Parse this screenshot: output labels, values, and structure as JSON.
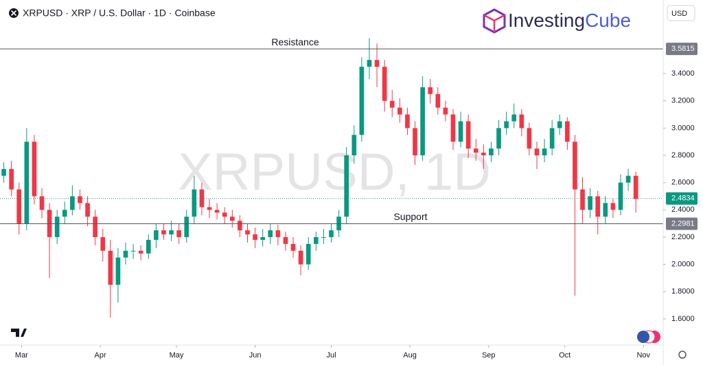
{
  "chart_data": {
    "type": "candlestick",
    "title": "XRPUSD · XRP / U.S. Dollar · 1D · Coinbase",
    "watermark": "XRPUSD, 1D",
    "currency": "USD",
    "logo": {
      "brand": "Investing",
      "accent": "Cube"
    },
    "up_color": "#089981",
    "down_color": "#f23645",
    "open": [
      2.65,
      2.7,
      2.55,
      2.3,
      2.9,
      2.5,
      2.4,
      2.2,
      2.35,
      2.4,
      2.5,
      2.45,
      2.35,
      2.2,
      2.1,
      1.85,
      2.05,
      2.1,
      2.1,
      2.08,
      2.18,
      2.25,
      2.22,
      2.25,
      2.2,
      2.35,
      2.55,
      2.42,
      2.4,
      2.38,
      2.35,
      2.32,
      2.25,
      2.22,
      2.18,
      2.2,
      2.25,
      2.2,
      2.15,
      2.1,
      2.0,
      2.15,
      2.2,
      2.2,
      2.25,
      2.35,
      2.8,
      2.95,
      3.45,
      3.5,
      3.45,
      3.2,
      3.15,
      3.1,
      3.0,
      2.8,
      3.3,
      3.25,
      3.15,
      3.1,
      2.9,
      3.05,
      2.85,
      2.82,
      2.8,
      2.85,
      3.0,
      3.05,
      3.1,
      3.0,
      2.85,
      2.8,
      2.85,
      3.0,
      3.05,
      2.9,
      2.55,
      2.4,
      2.5,
      2.35,
      2.45,
      2.4,
      2.6,
      2.65
    ],
    "high": [
      2.75,
      2.76,
      2.6,
      3.0,
      2.95,
      2.56,
      2.45,
      2.4,
      2.46,
      2.58,
      2.55,
      2.5,
      2.4,
      2.26,
      2.18,
      2.12,
      2.16,
      2.15,
      2.14,
      2.22,
      2.3,
      2.3,
      2.32,
      2.3,
      2.4,
      2.65,
      2.6,
      2.48,
      2.45,
      2.42,
      2.4,
      2.36,
      2.3,
      2.27,
      2.26,
      2.3,
      2.29,
      2.24,
      2.2,
      2.14,
      2.2,
      2.24,
      2.26,
      2.3,
      2.4,
      2.86,
      3.02,
      3.52,
      3.66,
      3.62,
      3.5,
      3.28,
      3.22,
      3.15,
      3.05,
      3.38,
      3.36,
      3.3,
      3.2,
      3.14,
      3.12,
      3.1,
      2.92,
      2.88,
      2.9,
      3.06,
      3.12,
      3.18,
      3.14,
      3.04,
      2.9,
      2.92,
      3.06,
      3.1,
      3.08,
      2.95,
      2.64,
      2.56,
      2.54,
      2.5,
      2.48,
      2.66,
      2.7,
      2.68
    ],
    "low": [
      2.6,
      2.5,
      2.22,
      2.25,
      2.44,
      2.34,
      1.9,
      2.15,
      2.3,
      2.36,
      2.4,
      2.28,
      2.14,
      2.02,
      1.61,
      1.72,
      2.0,
      2.04,
      2.03,
      2.04,
      2.12,
      2.18,
      2.17,
      2.15,
      2.16,
      2.3,
      2.36,
      2.34,
      2.33,
      2.3,
      2.27,
      2.2,
      2.16,
      2.12,
      2.13,
      2.15,
      2.14,
      2.1,
      2.05,
      1.92,
      1.96,
      2.1,
      2.15,
      2.16,
      2.2,
      2.3,
      2.74,
      2.9,
      3.36,
      3.3,
      3.12,
      3.08,
      3.04,
      2.95,
      2.73,
      2.76,
      3.18,
      3.1,
      3.05,
      2.84,
      2.86,
      2.78,
      2.76,
      2.7,
      2.75,
      2.8,
      2.95,
      3.0,
      2.94,
      2.8,
      2.7,
      2.75,
      2.8,
      2.95,
      2.84,
      1.77,
      2.3,
      2.34,
      2.22,
      2.3,
      2.34,
      2.36,
      2.54,
      2.38
    ],
    "close": [
      2.7,
      2.55,
      2.3,
      2.9,
      2.5,
      2.4,
      2.2,
      2.35,
      2.4,
      2.5,
      2.45,
      2.35,
      2.2,
      2.1,
      1.85,
      2.05,
      2.1,
      2.1,
      2.08,
      2.18,
      2.25,
      2.22,
      2.25,
      2.2,
      2.35,
      2.55,
      2.42,
      2.4,
      2.38,
      2.35,
      2.32,
      2.25,
      2.22,
      2.18,
      2.2,
      2.25,
      2.2,
      2.15,
      2.1,
      2.0,
      2.15,
      2.2,
      2.2,
      2.25,
      2.35,
      2.8,
      2.95,
      3.45,
      3.5,
      3.45,
      3.2,
      3.15,
      3.1,
      3.0,
      2.8,
      3.3,
      3.25,
      3.15,
      3.1,
      2.9,
      3.05,
      2.85,
      2.82,
      2.8,
      2.85,
      3.0,
      3.05,
      3.1,
      3.0,
      2.85,
      2.8,
      2.85,
      3.0,
      3.05,
      2.9,
      2.55,
      2.4,
      2.5,
      2.35,
      2.45,
      2.4,
      2.6,
      2.65,
      2.48
    ],
    "xlim": [
      -0.5,
      86.5
    ],
    "xticks": [
      {
        "value": 2.33,
        "label": "Mar"
      },
      {
        "value": 12.67,
        "label": "Apr"
      },
      {
        "value": 22.67,
        "label": "May"
      },
      {
        "value": 33,
        "label": "Jun"
      },
      {
        "value": 43,
        "label": "Jul"
      },
      {
        "value": 53.33,
        "label": "Aug"
      },
      {
        "value": 63.67,
        "label": "Sep"
      },
      {
        "value": 73.67,
        "label": "Oct"
      },
      {
        "value": 84,
        "label": "Nov"
      }
    ],
    "ylim": [
      1.418,
      3.94
    ],
    "yticks": [
      {
        "value": 1.6,
        "label": "1.6000"
      },
      {
        "value": 1.8,
        "label": "1.8000"
      },
      {
        "value": 2.0,
        "label": "2.0000"
      },
      {
        "value": 2.2,
        "label": "2.2000"
      },
      {
        "value": 2.4,
        "label": "2.4000"
      },
      {
        "value": 2.6,
        "label": "2.6000"
      },
      {
        "value": 2.8,
        "label": "2.8000"
      },
      {
        "value": 3.0,
        "label": "3.0000"
      },
      {
        "value": 3.2,
        "label": "3.2000"
      },
      {
        "value": 3.4,
        "label": "3.4000"
      }
    ],
    "levels": [
      {
        "label": "Resistance",
        "value": 3.5815
      },
      {
        "label": "Support",
        "value": 2.2981
      }
    ],
    "last_price": 2.4834
  }
}
